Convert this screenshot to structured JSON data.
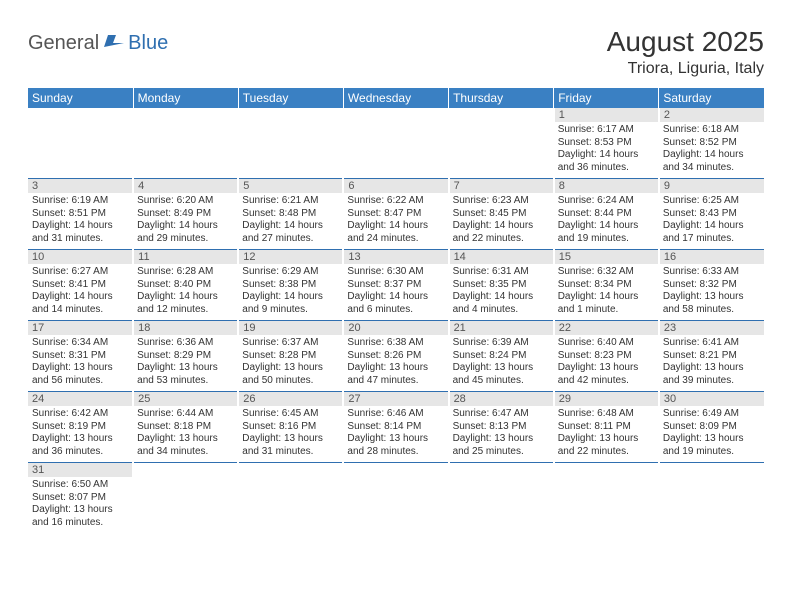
{
  "logo": {
    "general": "General",
    "blue": "Blue"
  },
  "title": "August 2025",
  "location": "Triora, Liguria, Italy",
  "colors": {
    "header_bg": "#3a80c3",
    "header_text": "#ffffff",
    "daynum_bg": "#e6e6e6",
    "border": "#2f6fb0",
    "text": "#333333"
  },
  "day_headers": [
    "Sunday",
    "Monday",
    "Tuesday",
    "Wednesday",
    "Thursday",
    "Friday",
    "Saturday"
  ],
  "weeks": [
    [
      {
        "n": "",
        "sunrise": "",
        "sunset": "",
        "daylight": ""
      },
      {
        "n": "",
        "sunrise": "",
        "sunset": "",
        "daylight": ""
      },
      {
        "n": "",
        "sunrise": "",
        "sunset": "",
        "daylight": ""
      },
      {
        "n": "",
        "sunrise": "",
        "sunset": "",
        "daylight": ""
      },
      {
        "n": "",
        "sunrise": "",
        "sunset": "",
        "daylight": ""
      },
      {
        "n": "1",
        "sunrise": "Sunrise: 6:17 AM",
        "sunset": "Sunset: 8:53 PM",
        "daylight": "Daylight: 14 hours and 36 minutes."
      },
      {
        "n": "2",
        "sunrise": "Sunrise: 6:18 AM",
        "sunset": "Sunset: 8:52 PM",
        "daylight": "Daylight: 14 hours and 34 minutes."
      }
    ],
    [
      {
        "n": "3",
        "sunrise": "Sunrise: 6:19 AM",
        "sunset": "Sunset: 8:51 PM",
        "daylight": "Daylight: 14 hours and 31 minutes."
      },
      {
        "n": "4",
        "sunrise": "Sunrise: 6:20 AM",
        "sunset": "Sunset: 8:49 PM",
        "daylight": "Daylight: 14 hours and 29 minutes."
      },
      {
        "n": "5",
        "sunrise": "Sunrise: 6:21 AM",
        "sunset": "Sunset: 8:48 PM",
        "daylight": "Daylight: 14 hours and 27 minutes."
      },
      {
        "n": "6",
        "sunrise": "Sunrise: 6:22 AM",
        "sunset": "Sunset: 8:47 PM",
        "daylight": "Daylight: 14 hours and 24 minutes."
      },
      {
        "n": "7",
        "sunrise": "Sunrise: 6:23 AM",
        "sunset": "Sunset: 8:45 PM",
        "daylight": "Daylight: 14 hours and 22 minutes."
      },
      {
        "n": "8",
        "sunrise": "Sunrise: 6:24 AM",
        "sunset": "Sunset: 8:44 PM",
        "daylight": "Daylight: 14 hours and 19 minutes."
      },
      {
        "n": "9",
        "sunrise": "Sunrise: 6:25 AM",
        "sunset": "Sunset: 8:43 PM",
        "daylight": "Daylight: 14 hours and 17 minutes."
      }
    ],
    [
      {
        "n": "10",
        "sunrise": "Sunrise: 6:27 AM",
        "sunset": "Sunset: 8:41 PM",
        "daylight": "Daylight: 14 hours and 14 minutes."
      },
      {
        "n": "11",
        "sunrise": "Sunrise: 6:28 AM",
        "sunset": "Sunset: 8:40 PM",
        "daylight": "Daylight: 14 hours and 12 minutes."
      },
      {
        "n": "12",
        "sunrise": "Sunrise: 6:29 AM",
        "sunset": "Sunset: 8:38 PM",
        "daylight": "Daylight: 14 hours and 9 minutes."
      },
      {
        "n": "13",
        "sunrise": "Sunrise: 6:30 AM",
        "sunset": "Sunset: 8:37 PM",
        "daylight": "Daylight: 14 hours and 6 minutes."
      },
      {
        "n": "14",
        "sunrise": "Sunrise: 6:31 AM",
        "sunset": "Sunset: 8:35 PM",
        "daylight": "Daylight: 14 hours and 4 minutes."
      },
      {
        "n": "15",
        "sunrise": "Sunrise: 6:32 AM",
        "sunset": "Sunset: 8:34 PM",
        "daylight": "Daylight: 14 hours and 1 minute."
      },
      {
        "n": "16",
        "sunrise": "Sunrise: 6:33 AM",
        "sunset": "Sunset: 8:32 PM",
        "daylight": "Daylight: 13 hours and 58 minutes."
      }
    ],
    [
      {
        "n": "17",
        "sunrise": "Sunrise: 6:34 AM",
        "sunset": "Sunset: 8:31 PM",
        "daylight": "Daylight: 13 hours and 56 minutes."
      },
      {
        "n": "18",
        "sunrise": "Sunrise: 6:36 AM",
        "sunset": "Sunset: 8:29 PM",
        "daylight": "Daylight: 13 hours and 53 minutes."
      },
      {
        "n": "19",
        "sunrise": "Sunrise: 6:37 AM",
        "sunset": "Sunset: 8:28 PM",
        "daylight": "Daylight: 13 hours and 50 minutes."
      },
      {
        "n": "20",
        "sunrise": "Sunrise: 6:38 AM",
        "sunset": "Sunset: 8:26 PM",
        "daylight": "Daylight: 13 hours and 47 minutes."
      },
      {
        "n": "21",
        "sunrise": "Sunrise: 6:39 AM",
        "sunset": "Sunset: 8:24 PM",
        "daylight": "Daylight: 13 hours and 45 minutes."
      },
      {
        "n": "22",
        "sunrise": "Sunrise: 6:40 AM",
        "sunset": "Sunset: 8:23 PM",
        "daylight": "Daylight: 13 hours and 42 minutes."
      },
      {
        "n": "23",
        "sunrise": "Sunrise: 6:41 AM",
        "sunset": "Sunset: 8:21 PM",
        "daylight": "Daylight: 13 hours and 39 minutes."
      }
    ],
    [
      {
        "n": "24",
        "sunrise": "Sunrise: 6:42 AM",
        "sunset": "Sunset: 8:19 PM",
        "daylight": "Daylight: 13 hours and 36 minutes."
      },
      {
        "n": "25",
        "sunrise": "Sunrise: 6:44 AM",
        "sunset": "Sunset: 8:18 PM",
        "daylight": "Daylight: 13 hours and 34 minutes."
      },
      {
        "n": "26",
        "sunrise": "Sunrise: 6:45 AM",
        "sunset": "Sunset: 8:16 PM",
        "daylight": "Daylight: 13 hours and 31 minutes."
      },
      {
        "n": "27",
        "sunrise": "Sunrise: 6:46 AM",
        "sunset": "Sunset: 8:14 PM",
        "daylight": "Daylight: 13 hours and 28 minutes."
      },
      {
        "n": "28",
        "sunrise": "Sunrise: 6:47 AM",
        "sunset": "Sunset: 8:13 PM",
        "daylight": "Daylight: 13 hours and 25 minutes."
      },
      {
        "n": "29",
        "sunrise": "Sunrise: 6:48 AM",
        "sunset": "Sunset: 8:11 PM",
        "daylight": "Daylight: 13 hours and 22 minutes."
      },
      {
        "n": "30",
        "sunrise": "Sunrise: 6:49 AM",
        "sunset": "Sunset: 8:09 PM",
        "daylight": "Daylight: 13 hours and 19 minutes."
      }
    ],
    [
      {
        "n": "31",
        "sunrise": "Sunrise: 6:50 AM",
        "sunset": "Sunset: 8:07 PM",
        "daylight": "Daylight: 13 hours and 16 minutes."
      },
      {
        "n": "",
        "sunrise": "",
        "sunset": "",
        "daylight": ""
      },
      {
        "n": "",
        "sunrise": "",
        "sunset": "",
        "daylight": ""
      },
      {
        "n": "",
        "sunrise": "",
        "sunset": "",
        "daylight": ""
      },
      {
        "n": "",
        "sunrise": "",
        "sunset": "",
        "daylight": ""
      },
      {
        "n": "",
        "sunrise": "",
        "sunset": "",
        "daylight": ""
      },
      {
        "n": "",
        "sunrise": "",
        "sunset": "",
        "daylight": ""
      }
    ]
  ]
}
